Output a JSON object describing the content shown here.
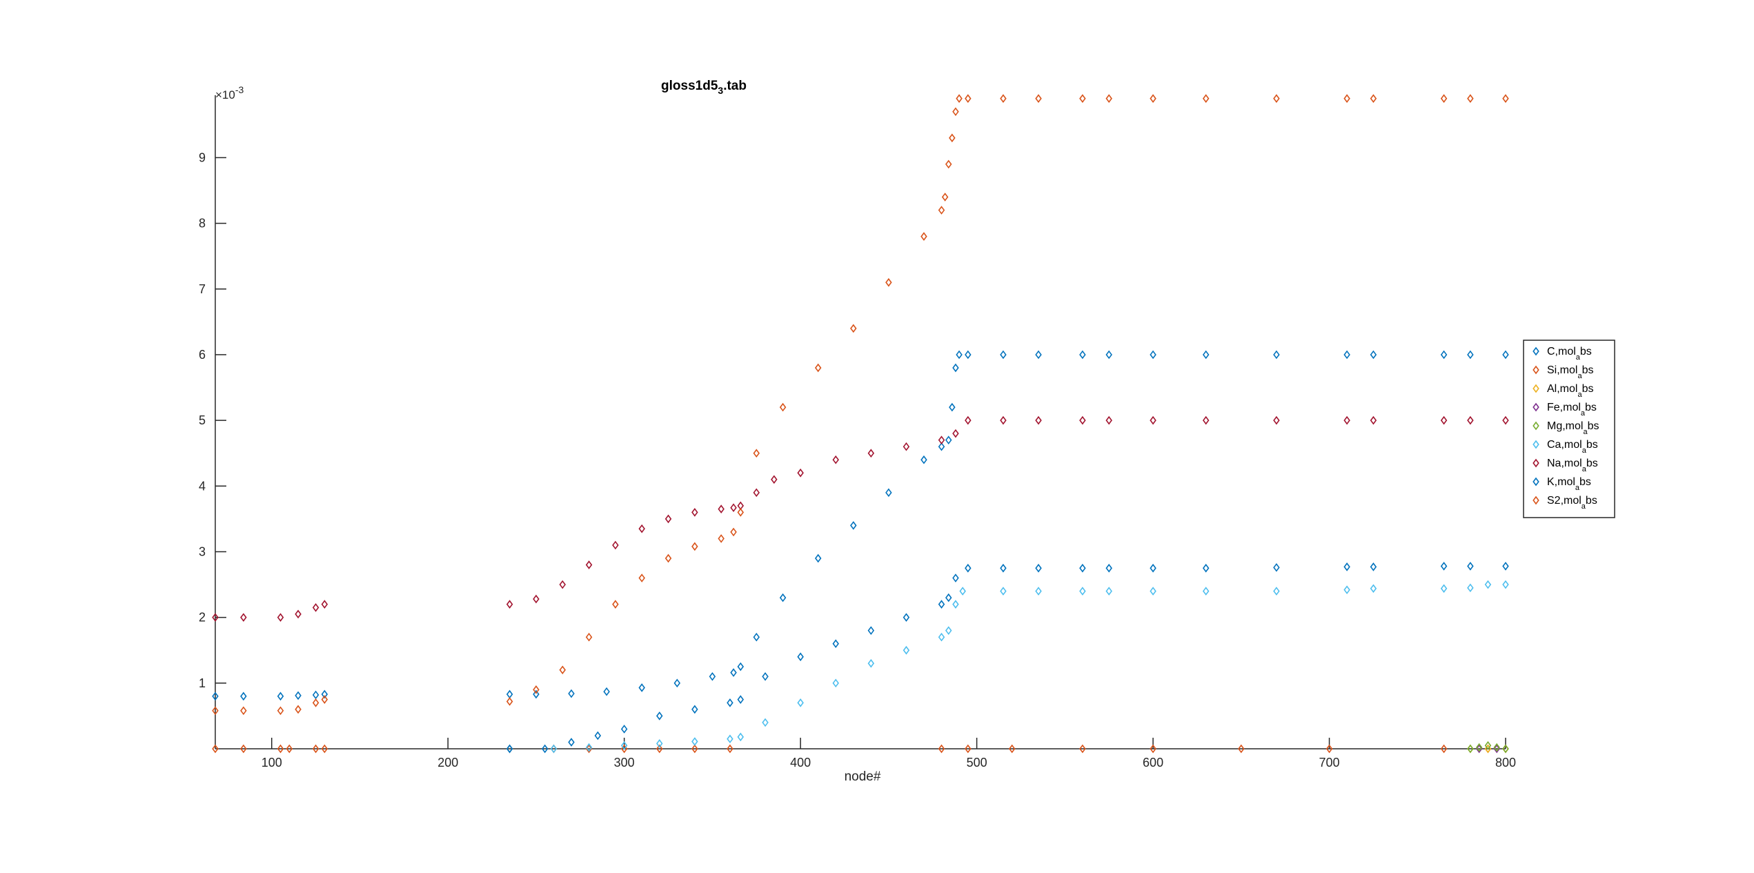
{
  "chart_data": {
    "type": "scatter",
    "title_main": "gloss1d5",
    "title_sub": "3",
    "title_rest": ".tab",
    "xlabel": "node#",
    "ylabel": "",
    "y_exponent_label": "×10",
    "y_exponent_value": "-3",
    "xlim": [
      68,
      800
    ],
    "ylim": [
      0,
      0.00995
    ],
    "x_ticks": [
      100,
      200,
      300,
      400,
      500,
      600,
      700,
      800
    ],
    "x_tick_labels": [
      "100",
      "200",
      "300",
      "400",
      "500",
      "600",
      "700",
      "800"
    ],
    "y_ticks": [
      0.001,
      0.002,
      0.003,
      0.004,
      0.005,
      0.006,
      0.007,
      0.008,
      0.009
    ],
    "y_tick_labels": [
      "1",
      "2",
      "3",
      "4",
      "5",
      "6",
      "7",
      "8",
      "9"
    ],
    "grid": false,
    "legend_position": "right",
    "marker": "diamond",
    "series": [
      {
        "name": "C,mol_abs",
        "label_main": "C,mol",
        "label_sub": "a",
        "label_rest": "bs",
        "color": "#0072BD",
        "x": [
          68,
          84,
          105,
          115,
          125,
          130,
          235,
          250,
          270,
          290,
          310,
          330,
          350,
          362,
          366,
          375,
          390,
          410,
          430,
          450,
          470,
          480,
          484,
          486,
          488,
          490,
          495,
          515,
          535,
          560,
          575,
          600,
          630,
          670,
          710,
          725,
          765,
          780,
          800
        ],
        "y": [
          0.0008,
          0.0008,
          0.0008,
          0.00081,
          0.00082,
          0.00083,
          0.00083,
          0.00083,
          0.00084,
          0.00087,
          0.00093,
          0.001,
          0.0011,
          0.00116,
          0.00125,
          0.0017,
          0.0023,
          0.0029,
          0.0034,
          0.0039,
          0.0044,
          0.0046,
          0.0047,
          0.0052,
          0.0058,
          0.006,
          0.006,
          0.006,
          0.006,
          0.006,
          0.006,
          0.006,
          0.006,
          0.006,
          0.006,
          0.006,
          0.006,
          0.006,
          0.006
        ]
      },
      {
        "name": "Si,mol_abs",
        "label_main": "Si,mol",
        "label_sub": "a",
        "label_rest": "bs",
        "color": "#D95319",
        "x": [
          68,
          84,
          105,
          110,
          125,
          130,
          235,
          260,
          280,
          300,
          320,
          340,
          360,
          480,
          495,
          520,
          560,
          600,
          650,
          700,
          765,
          790,
          800
        ],
        "y": [
          0,
          0,
          0,
          0,
          0,
          0,
          0,
          0,
          0,
          0,
          0,
          0,
          0,
          0,
          0,
          0,
          0,
          0,
          0,
          0,
          0,
          0,
          0
        ]
      },
      {
        "name": "Al,mol_abs",
        "label_main": "Al,mol",
        "label_sub": "a",
        "label_rest": "bs",
        "color": "#EDB120",
        "x": [
          780,
          790,
          800
        ],
        "y": [
          0,
          0,
          0
        ]
      },
      {
        "name": "Fe,mol_abs",
        "label_main": "Fe,mol",
        "label_sub": "a",
        "label_rest": "bs",
        "color": "#7E2F8E",
        "x": [
          785,
          795
        ],
        "y": [
          0,
          0
        ]
      },
      {
        "name": "Mg,mol_abs",
        "label_main": "Mg,mol",
        "label_sub": "a",
        "label_rest": "bs",
        "color": "#77AC30",
        "x": [
          780,
          785,
          790,
          795,
          800
        ],
        "y": [
          0,
          2e-05,
          5e-05,
          2e-05,
          0
        ]
      },
      {
        "name": "Ca,mol_abs",
        "label_main": "Ca,mol",
        "label_sub": "a",
        "label_rest": "bs",
        "color": "#4DBEEE",
        "x": [
          235,
          260,
          280,
          300,
          320,
          340,
          360,
          366,
          380,
          400,
          420,
          440,
          460,
          480,
          484,
          488,
          492,
          515,
          535,
          560,
          575,
          600,
          630,
          670,
          710,
          725,
          765,
          780,
          790,
          800
        ],
        "y": [
          0,
          0,
          2e-05,
          5e-05,
          8e-05,
          0.00011,
          0.00015,
          0.00018,
          0.0004,
          0.0007,
          0.001,
          0.0013,
          0.0015,
          0.0017,
          0.0018,
          0.0022,
          0.0024,
          0.0024,
          0.0024,
          0.0024,
          0.0024,
          0.0024,
          0.0024,
          0.0024,
          0.00242,
          0.00244,
          0.00244,
          0.00245,
          0.0025,
          0.0025
        ]
      },
      {
        "name": "Na,mol_abs",
        "label_main": "Na,mol",
        "label_sub": "a",
        "label_rest": "bs",
        "color": "#A2142F",
        "x": [
          68,
          84,
          105,
          115,
          125,
          130,
          235,
          250,
          265,
          280,
          295,
          310,
          325,
          340,
          355,
          362,
          366,
          375,
          385,
          400,
          420,
          440,
          460,
          480,
          488,
          495,
          515,
          535,
          560,
          575,
          600,
          630,
          670,
          710,
          725,
          765,
          780,
          800
        ],
        "y": [
          0.002,
          0.002,
          0.002,
          0.00205,
          0.00215,
          0.0022,
          0.0022,
          0.00228,
          0.0025,
          0.0028,
          0.0031,
          0.00335,
          0.0035,
          0.0036,
          0.00365,
          0.00367,
          0.0037,
          0.0039,
          0.0041,
          0.0042,
          0.0044,
          0.0045,
          0.0046,
          0.0047,
          0.0048,
          0.005,
          0.005,
          0.005,
          0.005,
          0.005,
          0.005,
          0.005,
          0.005,
          0.005,
          0.005,
          0.005,
          0.005,
          0.005
        ]
      },
      {
        "name": "K,mol_abs",
        "label_main": "K,mol",
        "label_sub": "a",
        "label_rest": "bs",
        "color": "#0072BD",
        "x": [
          235,
          255,
          270,
          285,
          300,
          320,
          340,
          360,
          366,
          380,
          400,
          420,
          440,
          460,
          480,
          484,
          488,
          495,
          515,
          535,
          560,
          575,
          600,
          630,
          670,
          710,
          725,
          765,
          780,
          800
        ],
        "y": [
          0,
          0,
          0.0001,
          0.0002,
          0.0003,
          0.0005,
          0.0006,
          0.0007,
          0.00075,
          0.0011,
          0.0014,
          0.0016,
          0.0018,
          0.002,
          0.0022,
          0.0023,
          0.0026,
          0.00275,
          0.00275,
          0.00275,
          0.00275,
          0.00275,
          0.00275,
          0.00275,
          0.00276,
          0.00277,
          0.00277,
          0.00278,
          0.00278,
          0.00278
        ]
      },
      {
        "name": "S2,mol_abs",
        "label_main": "S2,mol",
        "label_sub": "a",
        "label_rest": "bs",
        "color": "#D95319",
        "x": [
          68,
          84,
          105,
          115,
          125,
          130,
          235,
          250,
          265,
          280,
          295,
          310,
          325,
          340,
          355,
          362,
          366,
          375,
          390,
          410,
          430,
          450,
          470,
          480,
          482,
          484,
          486,
          488,
          490,
          495,
          515,
          535,
          560,
          575,
          600,
          630,
          670,
          710,
          725,
          765,
          780,
          800
        ],
        "y": [
          0.00058,
          0.00058,
          0.00058,
          0.0006,
          0.0007,
          0.00075,
          0.00072,
          0.0009,
          0.0012,
          0.0017,
          0.0022,
          0.0026,
          0.0029,
          0.00308,
          0.0032,
          0.0033,
          0.0036,
          0.0045,
          0.0052,
          0.0058,
          0.0064,
          0.0071,
          0.0078,
          0.0082,
          0.0084,
          0.0089,
          0.0093,
          0.0097,
          0.0099,
          0.0099,
          0.0099,
          0.0099,
          0.0099,
          0.0099,
          0.0099,
          0.0099,
          0.0099,
          0.0099,
          0.0099,
          0.0099,
          0.0099,
          0.0099
        ]
      }
    ]
  }
}
